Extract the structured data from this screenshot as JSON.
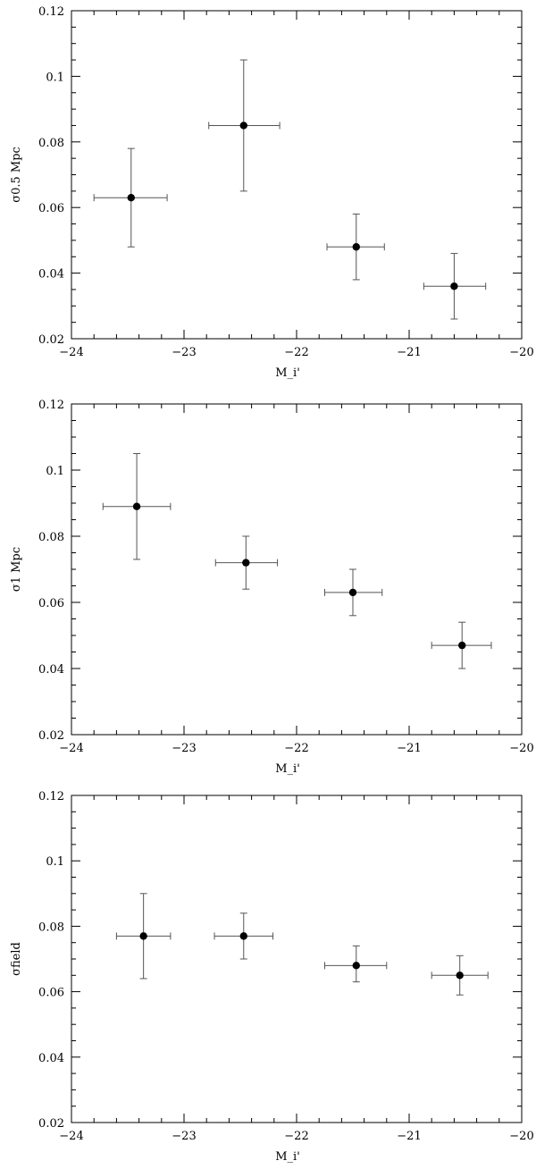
{
  "chart_data": [
    {
      "type": "scatter",
      "title": "",
      "xlabel": "M_i'",
      "ylabel": "σ0.5  Mpc",
      "xlim": [
        -24,
        -20
      ],
      "ylim": [
        0.02,
        0.12
      ],
      "xticks": [
        -24,
        -23,
        -22,
        -21,
        -20
      ],
      "xtick_labels": [
        "−24",
        "−23",
        "−22",
        "−21",
        "−20"
      ],
      "yticks": [
        0.02,
        0.04,
        0.06,
        0.08,
        0.1,
        0.12
      ],
      "ytick_labels": [
        "0.02",
        "0.04",
        "0.06",
        "0.08",
        "0.1",
        "0.12"
      ],
      "grid": false,
      "points": [
        {
          "x": -23.47,
          "y": 0.063,
          "xerr_low": -23.8,
          "xerr_high": -23.15,
          "yerr_low": 0.048,
          "yerr_high": 0.078
        },
        {
          "x": -22.47,
          "y": 0.085,
          "xerr_low": -22.78,
          "xerr_high": -22.15,
          "yerr_low": 0.065,
          "yerr_high": 0.105
        },
        {
          "x": -21.47,
          "y": 0.048,
          "xerr_low": -21.73,
          "xerr_high": -21.22,
          "yerr_low": 0.038,
          "yerr_high": 0.058
        },
        {
          "x": -20.6,
          "y": 0.036,
          "xerr_low": -20.87,
          "xerr_high": -20.32,
          "yerr_low": 0.026,
          "yerr_high": 0.046
        }
      ]
    },
    {
      "type": "scatter",
      "title": "",
      "xlabel": "M_i'",
      "ylabel": "σ1  Mpc",
      "xlim": [
        -24,
        -20
      ],
      "ylim": [
        0.02,
        0.12
      ],
      "xticks": [
        -24,
        -23,
        -22,
        -21,
        -20
      ],
      "xtick_labels": [
        "−24",
        "−23",
        "−22",
        "−21",
        "−20"
      ],
      "yticks": [
        0.02,
        0.04,
        0.06,
        0.08,
        0.1,
        0.12
      ],
      "ytick_labels": [
        "0.02",
        "0.04",
        "0.06",
        "0.08",
        "0.1",
        "0.12"
      ],
      "grid": false,
      "points": [
        {
          "x": -23.42,
          "y": 0.089,
          "xerr_low": -23.72,
          "xerr_high": -23.12,
          "yerr_low": 0.073,
          "yerr_high": 0.105
        },
        {
          "x": -22.45,
          "y": 0.072,
          "xerr_low": -22.72,
          "xerr_high": -22.17,
          "yerr_low": 0.064,
          "yerr_high": 0.08
        },
        {
          "x": -21.5,
          "y": 0.063,
          "xerr_low": -21.75,
          "xerr_high": -21.24,
          "yerr_low": 0.056,
          "yerr_high": 0.07
        },
        {
          "x": -20.53,
          "y": 0.047,
          "xerr_low": -20.8,
          "xerr_high": -20.27,
          "yerr_low": 0.04,
          "yerr_high": 0.054
        }
      ]
    },
    {
      "type": "scatter",
      "title": "",
      "xlabel": "M_i'",
      "ylabel": "σfield",
      "xlim": [
        -24,
        -20
      ],
      "ylim": [
        0.02,
        0.12
      ],
      "xticks": [
        -24,
        -23,
        -22,
        -21,
        -20
      ],
      "xtick_labels": [
        "−24",
        "−23",
        "−22",
        "−21",
        "−20"
      ],
      "yticks": [
        0.02,
        0.04,
        0.06,
        0.08,
        0.1,
        0.12
      ],
      "ytick_labels": [
        "0.02",
        "0.04",
        "0.06",
        "0.08",
        "0.1",
        "0.12"
      ],
      "grid": false,
      "points": [
        {
          "x": -23.36,
          "y": 0.077,
          "xerr_low": -23.6,
          "xerr_high": -23.12,
          "yerr_low": 0.064,
          "yerr_high": 0.09
        },
        {
          "x": -22.47,
          "y": 0.077,
          "xerr_low": -22.73,
          "xerr_high": -22.21,
          "yerr_low": 0.07,
          "yerr_high": 0.084
        },
        {
          "x": -21.47,
          "y": 0.068,
          "xerr_low": -21.75,
          "xerr_high": -21.2,
          "yerr_low": 0.063,
          "yerr_high": 0.074
        },
        {
          "x": -20.55,
          "y": 0.065,
          "xerr_low": -20.8,
          "xerr_high": -20.3,
          "yerr_low": 0.059,
          "yerr_high": 0.071
        }
      ]
    }
  ],
  "style": {
    "point_color": "#000000",
    "errorbar_color": "#555555",
    "axis_color": "#000000"
  }
}
